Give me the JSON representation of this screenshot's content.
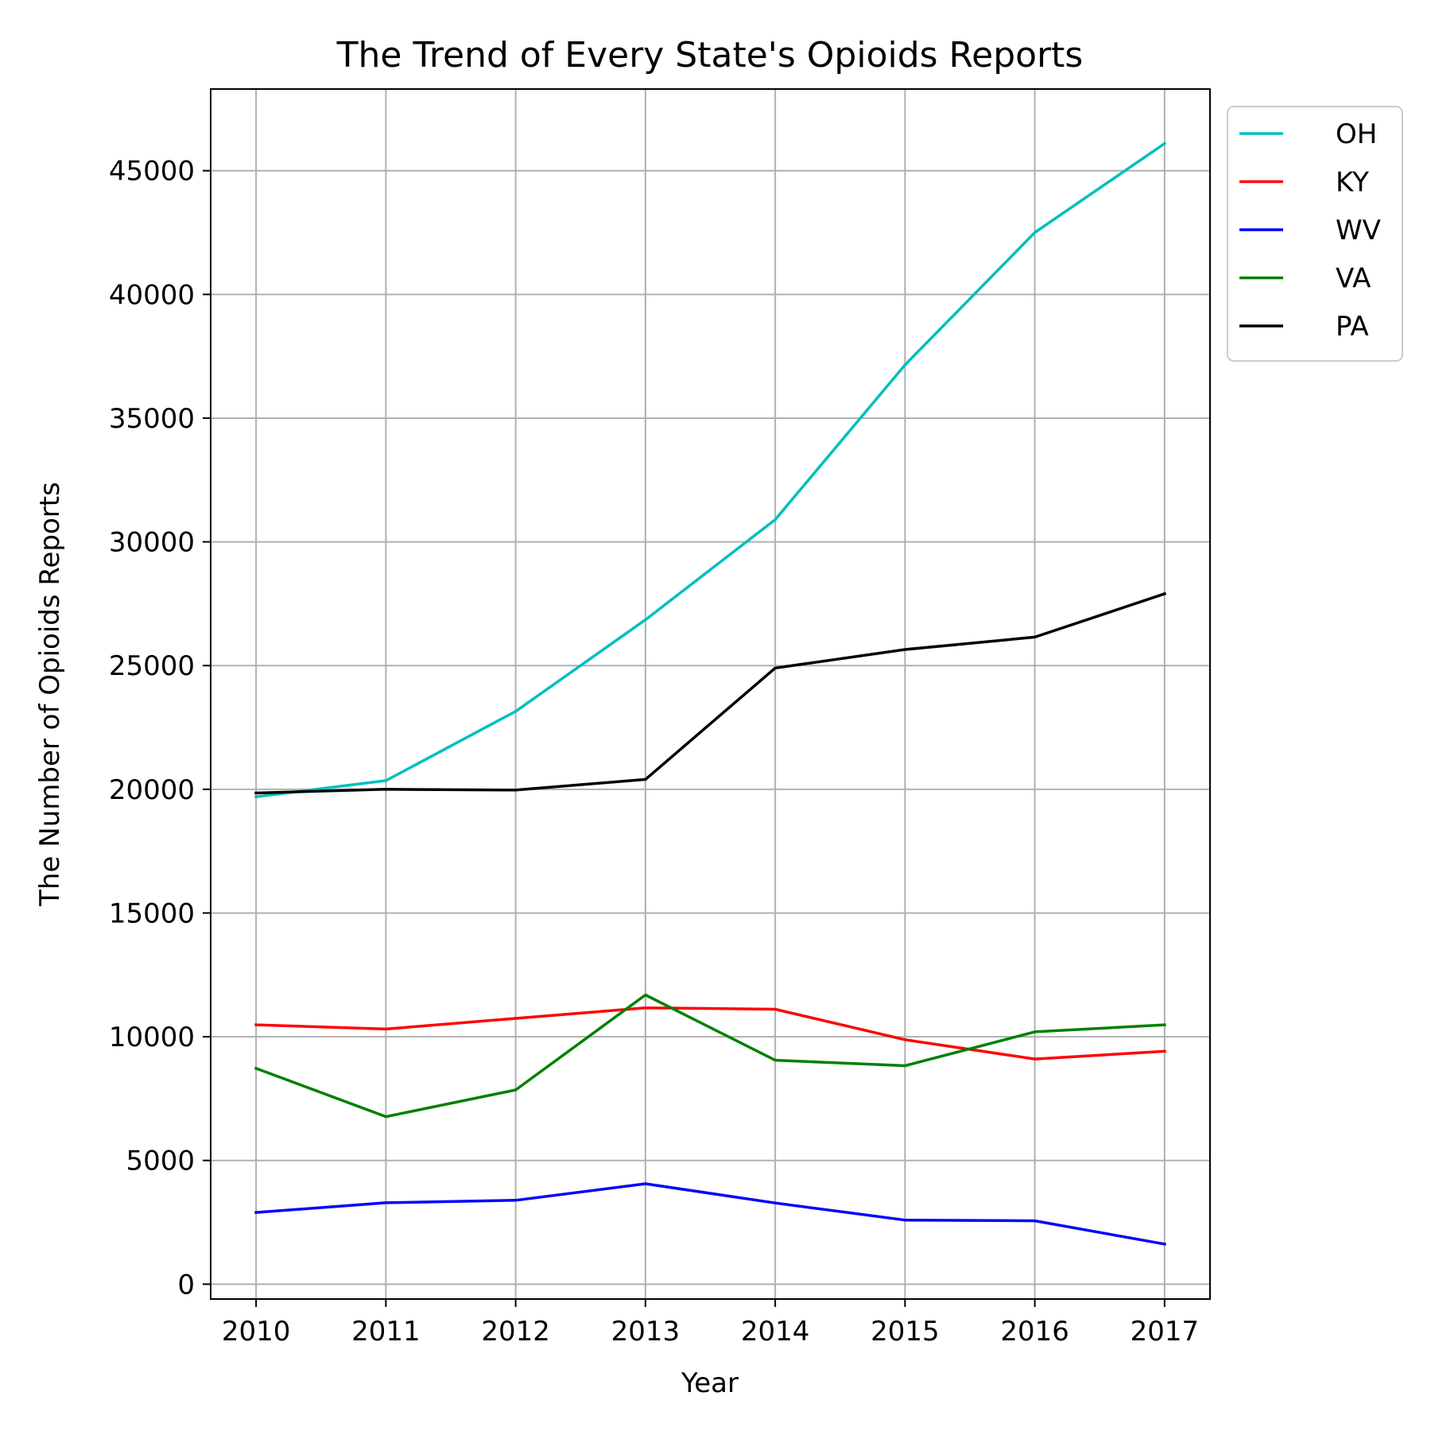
{
  "chart_data": {
    "type": "line",
    "title": "The Trend of Every State's Opioids Reports",
    "xlabel": "Year",
    "ylabel": "The Number of Opioids Reports",
    "x": [
      2010,
      2011,
      2012,
      2013,
      2014,
      2015,
      2016,
      2017
    ],
    "x_tick_labels": [
      "2010",
      "2011",
      "2012",
      "2013",
      "2014",
      "2015",
      "2016",
      "2017"
    ],
    "xlim": [
      2009.65,
      2017.35
    ],
    "ylim": [
      -600,
      48300
    ],
    "y_ticks": [
      0,
      5000,
      10000,
      15000,
      20000,
      25000,
      30000,
      35000,
      40000,
      45000
    ],
    "y_tick_labels": [
      "0",
      "5000",
      "10000",
      "15000",
      "20000",
      "25000",
      "30000",
      "35000",
      "40000",
      "45000"
    ],
    "grid": true,
    "legend_position": "outside-top-right",
    "series": [
      {
        "name": "OH",
        "color": "#00bfbf",
        "values": [
          19700,
          20350,
          23150,
          26850,
          30900,
          37150,
          42500,
          46100
        ]
      },
      {
        "name": "KY",
        "color": "#ff0000",
        "values": [
          10480,
          10310,
          10740,
          11170,
          11110,
          9880,
          9100,
          9410
        ]
      },
      {
        "name": "WV",
        "color": "#0000ff",
        "values": [
          2900,
          3290,
          3390,
          4060,
          3280,
          2590,
          2560,
          1620
        ]
      },
      {
        "name": "VA",
        "color": "#008000",
        "values": [
          8720,
          6770,
          7850,
          11690,
          9050,
          8830,
          10200,
          10480
        ]
      },
      {
        "name": "PA",
        "color": "#000000",
        "values": [
          19850,
          20000,
          19970,
          20400,
          24900,
          25650,
          26150,
          27900
        ]
      }
    ]
  }
}
